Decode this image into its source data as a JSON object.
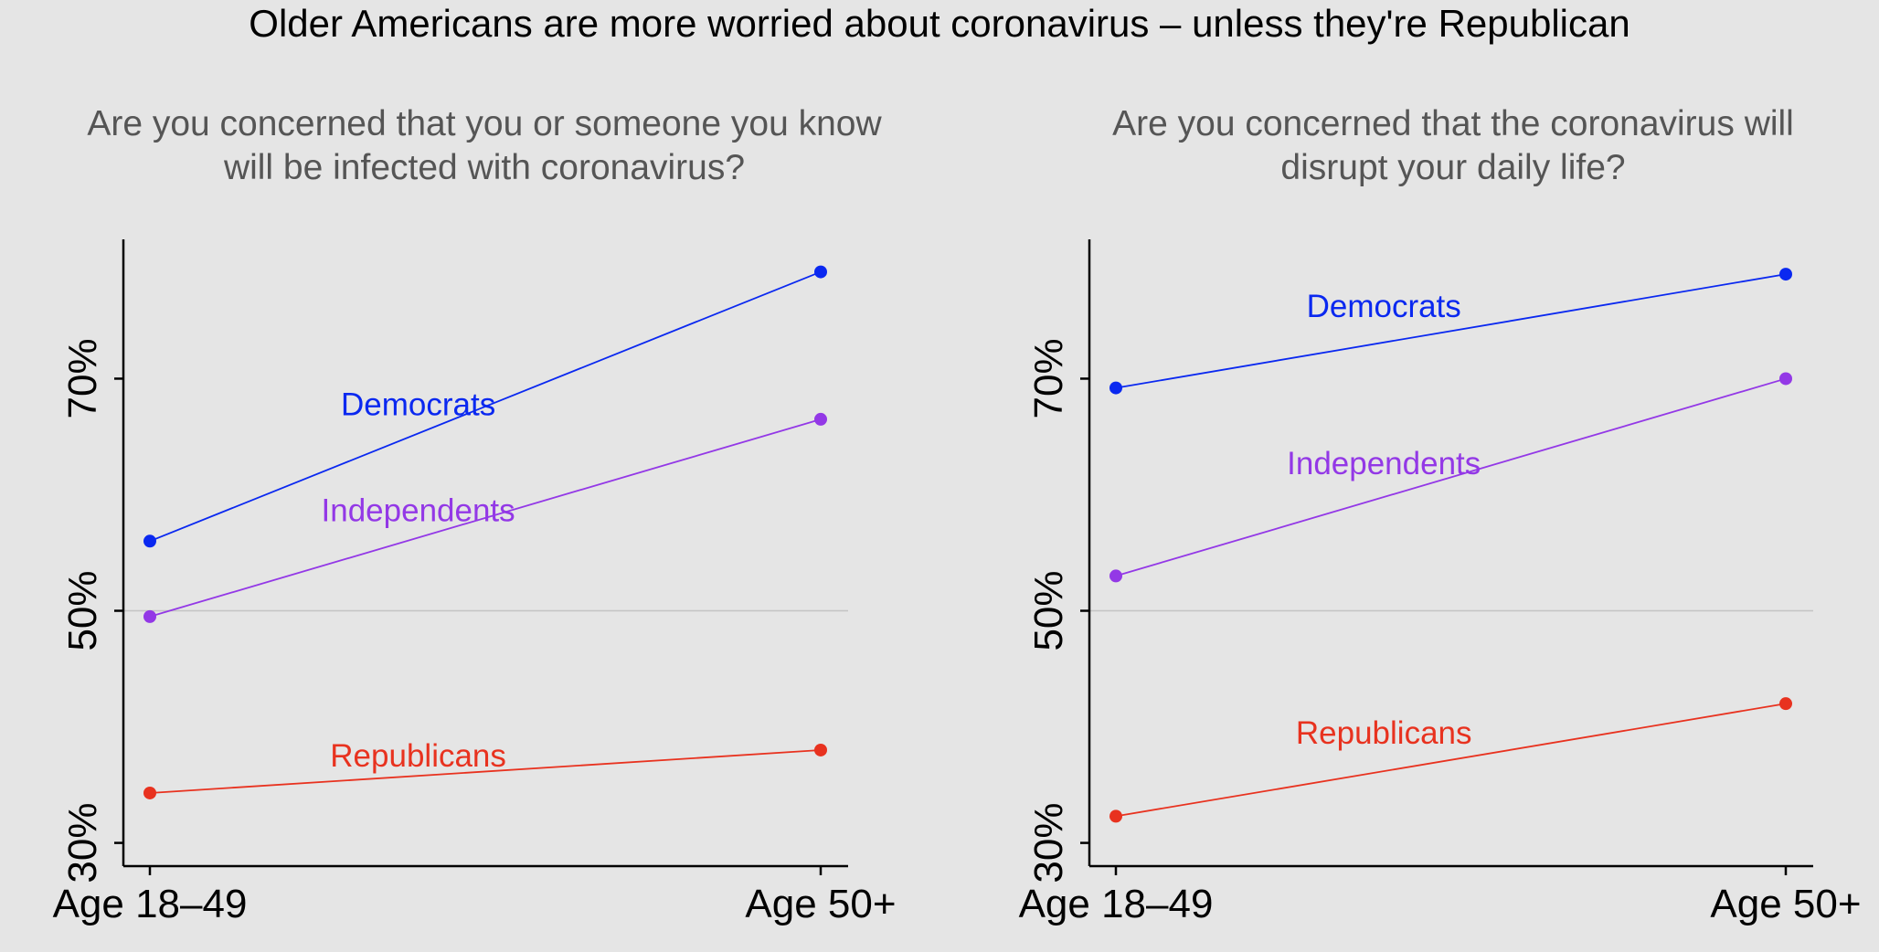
{
  "title": "Older Americans are more worried about coronavirus – unless they're Republican",
  "chart_data": [
    {
      "type": "line",
      "subtitle_lines": [
        "Are you concerned that you or someone you know",
        "will be infected with coronavirus?"
      ],
      "categories": [
        "Age 18–49",
        "Age 50+"
      ],
      "y_ticks": [
        30,
        50,
        70
      ],
      "y_tick_labels": [
        "30%",
        "50%",
        "70%"
      ],
      "ylim": [
        28,
        82
      ],
      "reference_line": 50,
      "series": [
        {
          "name": "Democrats",
          "values": [
            56,
            79.2
          ],
          "color": "#0a28f0"
        },
        {
          "name": "Independents",
          "values": [
            49.5,
            66.5
          ],
          "color": "#9338e6"
        },
        {
          "name": "Republicans",
          "values": [
            34.3,
            38
          ],
          "color": "#e8321f"
        }
      ]
    },
    {
      "type": "line",
      "subtitle_lines": [
        "Are you concerned that the coronavirus will",
        "disrupt your daily life?"
      ],
      "categories": [
        "Age 18–49",
        "Age 50+"
      ],
      "y_ticks": [
        30,
        50,
        70
      ],
      "y_tick_labels": [
        "30%",
        "50%",
        "70%"
      ],
      "ylim": [
        28,
        82
      ],
      "reference_line": 50,
      "series": [
        {
          "name": "Democrats",
          "values": [
            69.2,
            79
          ],
          "color": "#0a28f0"
        },
        {
          "name": "Independents",
          "values": [
            53,
            70
          ],
          "color": "#9338e6"
        },
        {
          "name": "Republicans",
          "values": [
            32.3,
            42
          ],
          "color": "#e8321f"
        }
      ]
    }
  ]
}
